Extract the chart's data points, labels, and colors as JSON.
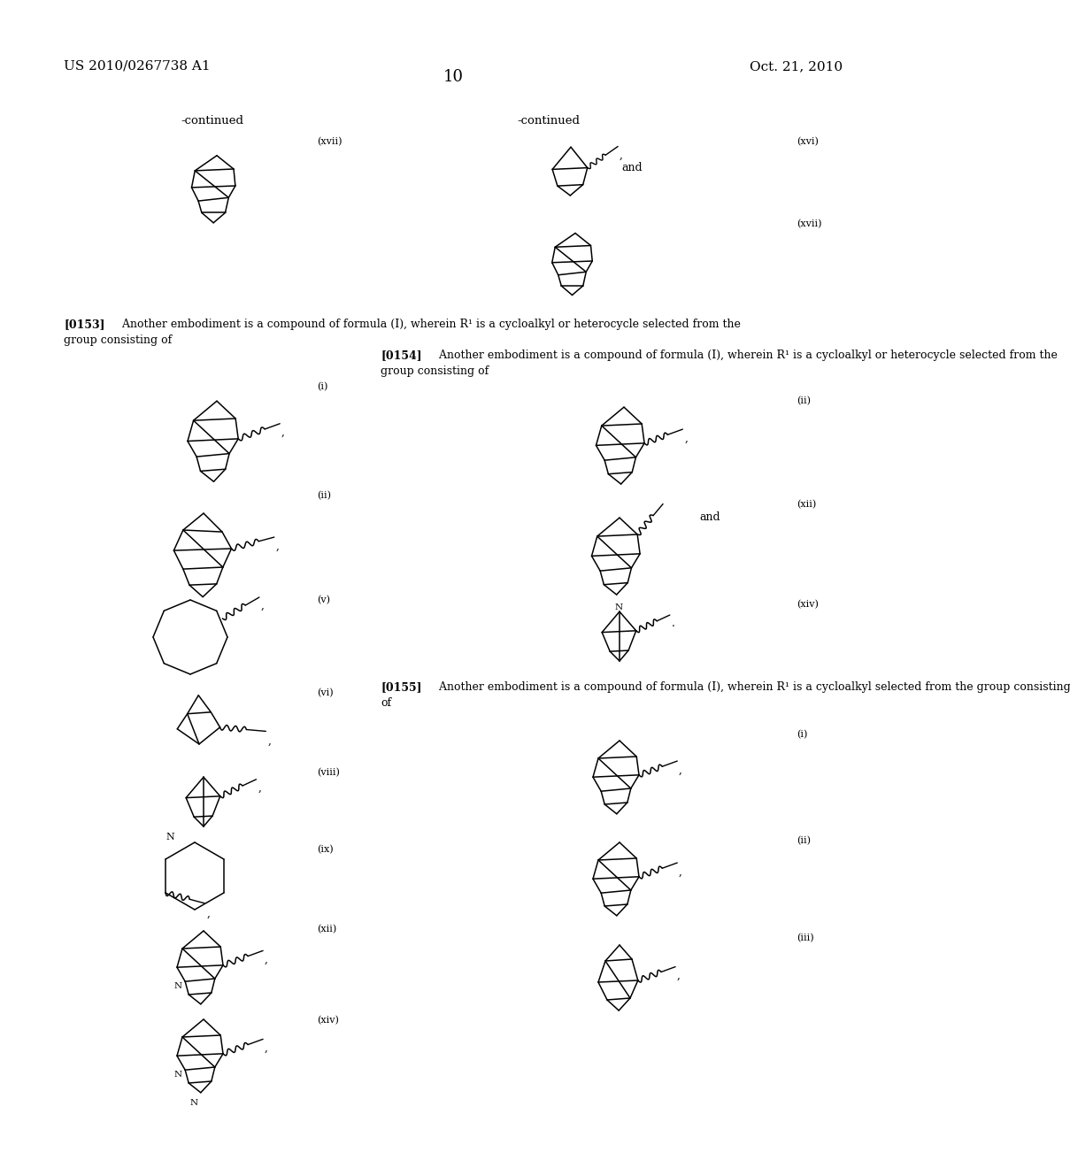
{
  "page_number": "10",
  "left_header": "US 2010/0267738 A1",
  "right_header": "Oct. 21, 2010",
  "bg": "#ffffff",
  "tc": "#000000",
  "paragraph_0153": "[0153]   Another embodiment is a compound of formula (I), wherein R¹ is a cycloalkyl or heterocycle selected from the group consisting of",
  "paragraph_0154": "[0154]   Another embodiment is a compound of formula (I), wherein R¹ is a cycloalkyl or heterocycle selected from the group consisting of",
  "paragraph_0155": "[0155]   Another embodiment is a compound of formula (I), wherein R¹ is a cycloalkyl selected from the group consisting of"
}
